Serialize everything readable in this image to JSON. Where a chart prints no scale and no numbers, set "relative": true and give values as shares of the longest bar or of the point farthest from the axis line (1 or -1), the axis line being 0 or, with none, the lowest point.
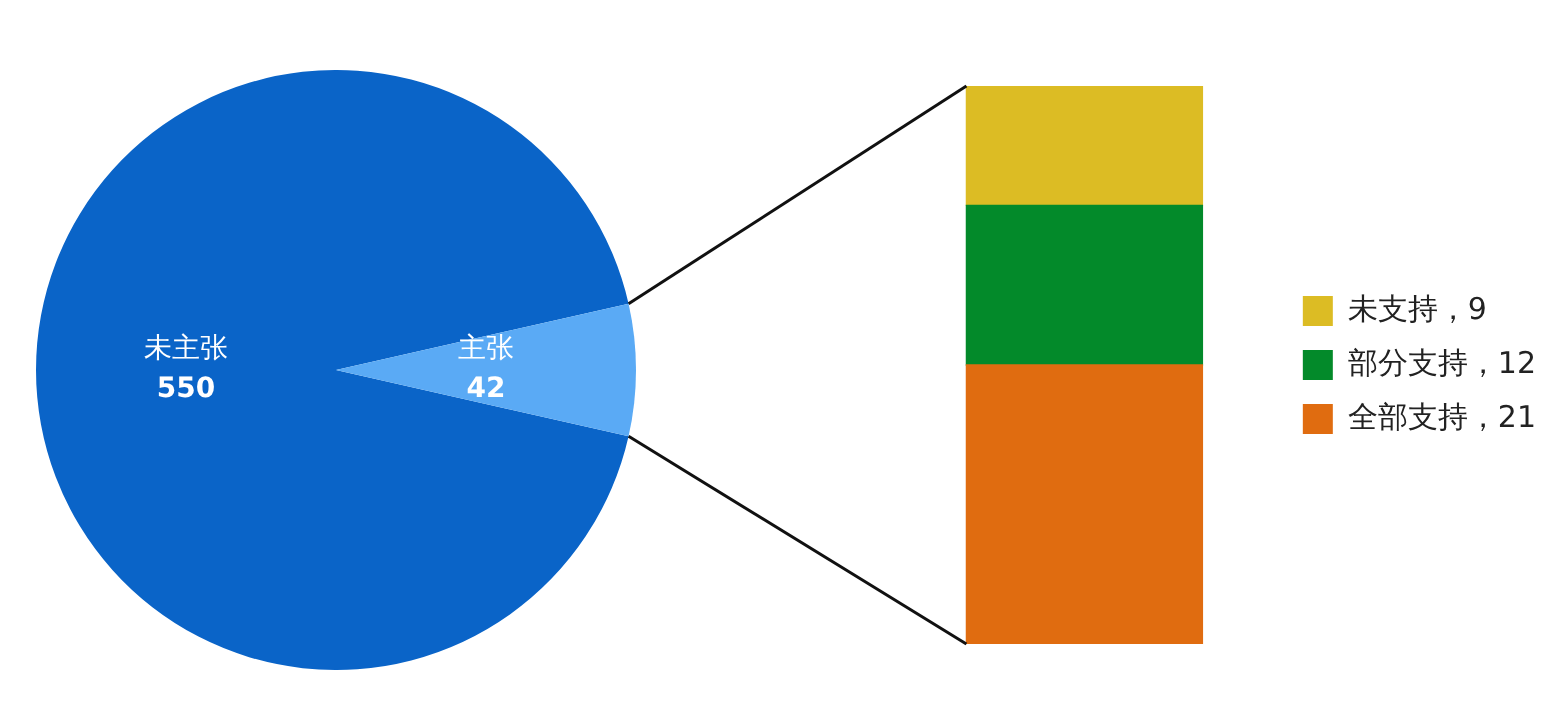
{
  "chart_data": [
    {
      "type": "pie",
      "categories": [
        "未主张",
        "主张"
      ],
      "values": [
        550,
        42
      ],
      "colors": [
        "#0a64c8",
        "#5aaaf5"
      ],
      "data_labels": true
    },
    {
      "type": "bar",
      "stacked": true,
      "categories": [
        null
      ],
      "relative": true,
      "tick_labels": false,
      "legend": "right",
      "series": [
        {
          "name": "全部支持，21",
          "color": "#e06c10",
          "values": [
            0.5
          ]
        },
        {
          "name": "部分支持，12",
          "color": "#038a2a",
          "values": [
            0.286
          ]
        },
        {
          "name": "未支持，9",
          "color": "#dcbc24",
          "values": [
            0.214
          ]
        }
      ]
    }
  ]
}
